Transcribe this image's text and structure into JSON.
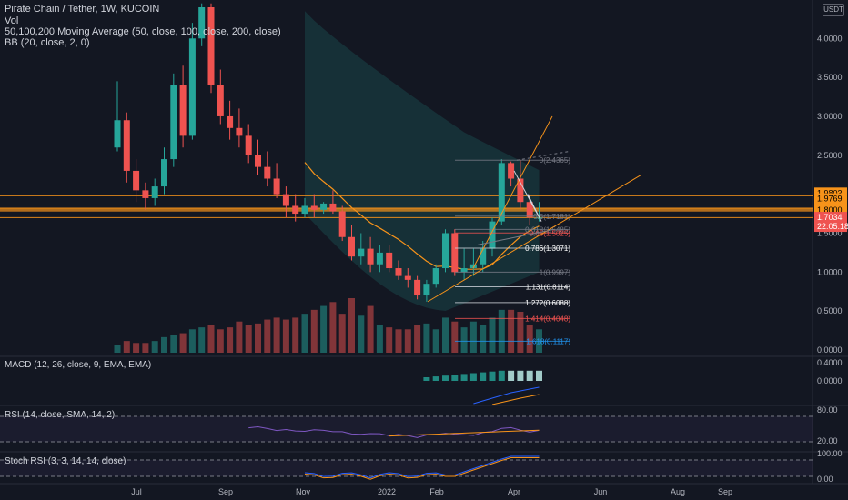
{
  "header": {
    "symbol_line": "Pirate Chain / Tether, 1W, KUCOIN",
    "vol_label": "Vol",
    "ma_label": "50,100,200 Moving Average (50, close, 100, close, 200, close)",
    "bb_label": "BB (20, close, 2, 0)",
    "currency_badge": "USDT"
  },
  "panes": {
    "macd_label": "MACD (12, 26, close, 9, EMA, EMA)",
    "rsi_label": "RSI (14, close, SMA, 14, 2)",
    "stoch_label": "Stoch RSI (3, 3, 14, 14, close)"
  },
  "colors": {
    "up": "#26a69a",
    "down": "#ef5350",
    "background": "#131722",
    "bb_fill": "#26a69a",
    "ma_line": "#f7931a",
    "hline": "#f7931a",
    "rsi_line": "#7e57c2",
    "macd_line": "#2962ff"
  },
  "price_axis": {
    "ticks": [
      "4.0000",
      "3.5000",
      "3.0000",
      "2.5000",
      "2.0000",
      "1.5000",
      "1.0000",
      "0.5000",
      "0.0000"
    ],
    "highlight_labels": [
      "1.9803",
      "1.9769",
      "1.8201",
      "1.8000"
    ],
    "current_price": "1.7034",
    "countdown": "22:05:18"
  },
  "macd_axis": {
    "ticks": [
      "0.4000",
      "0.0000"
    ]
  },
  "rsi_axis": {
    "ticks": [
      "80.00",
      "20.00"
    ]
  },
  "stoch_axis": {
    "ticks": [
      "100.00",
      "0.00"
    ]
  },
  "time_axis": {
    "labels": [
      "Jul",
      "Sep",
      "Nov",
      "2022",
      "Feb",
      "Apr",
      "Jun",
      "Aug",
      "Sep"
    ]
  },
  "fib_labels": [
    {
      "text": "0(2.4365)",
      "color": "#787b86"
    },
    {
      "text": "0.5(1.7181)",
      "color": "#787b86"
    },
    {
      "text": "0.618(1.5485)",
      "color": "#787b86"
    },
    {
      "text": "0.65(1.5025)",
      "color": "#ef5350"
    },
    {
      "text": "0.786(1.3071)",
      "color": "#ffffff"
    },
    {
      "text": "1(0.9997)",
      "color": "#787b86"
    },
    {
      "text": "1.131(0.8114)",
      "color": "#ffffff"
    },
    {
      "text": "1.272(0.6088)",
      "color": "#ffffff"
    },
    {
      "text": "1.414(0.4048)",
      "color": "#ef5350"
    },
    {
      "text": "1.618(0.1117)",
      "color": "#2196f3"
    }
  ],
  "chart_data": {
    "type": "candlestick",
    "y_range": [
      0,
      4.4
    ],
    "candles": [
      {
        "o": 2.6,
        "h": 3.45,
        "l": 2.55,
        "c": 2.95
      },
      {
        "o": 2.95,
        "h": 3.05,
        "l": 2.15,
        "c": 2.3
      },
      {
        "o": 2.3,
        "h": 2.45,
        "l": 1.9,
        "c": 2.05
      },
      {
        "o": 2.05,
        "h": 2.15,
        "l": 1.8,
        "c": 1.95
      },
      {
        "o": 1.95,
        "h": 2.2,
        "l": 1.85,
        "c": 2.1
      },
      {
        "o": 2.1,
        "h": 2.6,
        "l": 2.0,
        "c": 2.45
      },
      {
        "o": 2.45,
        "h": 3.55,
        "l": 2.35,
        "c": 3.4
      },
      {
        "o": 3.4,
        "h": 3.65,
        "l": 2.6,
        "c": 2.75
      },
      {
        "o": 2.75,
        "h": 4.2,
        "l": 2.7,
        "c": 4.0
      },
      {
        "o": 4.0,
        "h": 4.45,
        "l": 3.9,
        "c": 4.4
      },
      {
        "o": 4.4,
        "h": 4.45,
        "l": 3.3,
        "c": 3.4
      },
      {
        "o": 3.4,
        "h": 3.6,
        "l": 2.9,
        "c": 3.0
      },
      {
        "o": 3.0,
        "h": 3.2,
        "l": 2.7,
        "c": 2.85
      },
      {
        "o": 2.85,
        "h": 3.1,
        "l": 2.6,
        "c": 2.75
      },
      {
        "o": 2.75,
        "h": 2.9,
        "l": 2.4,
        "c": 2.5
      },
      {
        "o": 2.5,
        "h": 2.7,
        "l": 2.25,
        "c": 2.35
      },
      {
        "o": 2.35,
        "h": 2.55,
        "l": 2.1,
        "c": 2.2
      },
      {
        "o": 2.2,
        "h": 2.4,
        "l": 1.95,
        "c": 2.0
      },
      {
        "o": 2.0,
        "h": 2.1,
        "l": 1.7,
        "c": 1.85
      },
      {
        "o": 1.85,
        "h": 2.0,
        "l": 1.65,
        "c": 1.75
      },
      {
        "o": 1.75,
        "h": 1.95,
        "l": 1.7,
        "c": 1.85
      },
      {
        "o": 1.85,
        "h": 2.0,
        "l": 1.7,
        "c": 1.8
      },
      {
        "o": 1.8,
        "h": 1.9,
        "l": 1.75,
        "c": 1.88
      },
      {
        "o": 1.88,
        "h": 2.05,
        "l": 1.75,
        "c": 1.78
      },
      {
        "o": 1.78,
        "h": 1.85,
        "l": 1.4,
        "c": 1.45
      },
      {
        "o": 1.45,
        "h": 1.6,
        "l": 1.15,
        "c": 1.2
      },
      {
        "o": 1.2,
        "h": 1.5,
        "l": 1.1,
        "c": 1.3
      },
      {
        "o": 1.3,
        "h": 1.45,
        "l": 1.0,
        "c": 1.1
      },
      {
        "o": 1.1,
        "h": 1.35,
        "l": 1.0,
        "c": 1.25
      },
      {
        "o": 1.25,
        "h": 1.35,
        "l": 1.0,
        "c": 1.05
      },
      {
        "o": 1.05,
        "h": 1.15,
        "l": 0.9,
        "c": 0.95
      },
      {
        "o": 0.95,
        "h": 1.05,
        "l": 0.8,
        "c": 0.9
      },
      {
        "o": 0.9,
        "h": 0.95,
        "l": 0.65,
        "c": 0.7
      },
      {
        "o": 0.7,
        "h": 0.9,
        "l": 0.62,
        "c": 0.85
      },
      {
        "o": 0.85,
        "h": 1.1,
        "l": 0.8,
        "c": 1.05
      },
      {
        "o": 1.05,
        "h": 1.55,
        "l": 1.0,
        "c": 1.5
      },
      {
        "o": 1.5,
        "h": 1.55,
        "l": 0.95,
        "c": 1.0
      },
      {
        "o": 1.0,
        "h": 1.3,
        "l": 0.9,
        "c": 1.05
      },
      {
        "o": 1.05,
        "h": 1.3,
        "l": 0.95,
        "c": 1.1
      },
      {
        "o": 1.1,
        "h": 1.4,
        "l": 1.0,
        "c": 1.3
      },
      {
        "o": 1.3,
        "h": 1.7,
        "l": 1.2,
        "c": 1.65
      },
      {
        "o": 1.65,
        "h": 2.45,
        "l": 1.6,
        "c": 2.4
      },
      {
        "o": 2.4,
        "h": 2.42,
        "l": 2.1,
        "c": 2.2
      },
      {
        "o": 2.2,
        "h": 2.44,
        "l": 1.8,
        "c": 1.9
      },
      {
        "o": 1.9,
        "h": 2.0,
        "l": 1.6,
        "c": 1.7
      },
      {
        "o": 1.7,
        "h": 1.9,
        "l": 1.65,
        "c": 1.7
      }
    ],
    "volume": [
      4,
      6,
      5,
      5,
      6,
      8,
      9,
      10,
      12,
      13,
      14,
      12,
      13,
      16,
      14,
      15,
      17,
      18,
      17,
      18,
      20,
      22,
      24,
      26,
      20,
      28,
      19,
      24,
      14,
      13,
      12,
      12,
      14,
      15,
      12,
      18,
      16,
      13,
      16,
      14,
      18,
      22,
      22,
      21,
      14,
      12
    ],
    "hlines": [
      1.98,
      1.82,
      1.8,
      1.7
    ],
    "fib_levels": [
      2.4365,
      1.7181,
      1.5485,
      1.5025,
      1.3071,
      0.9997,
      0.8114,
      0.6088,
      0.4048,
      0.1117
    ]
  }
}
